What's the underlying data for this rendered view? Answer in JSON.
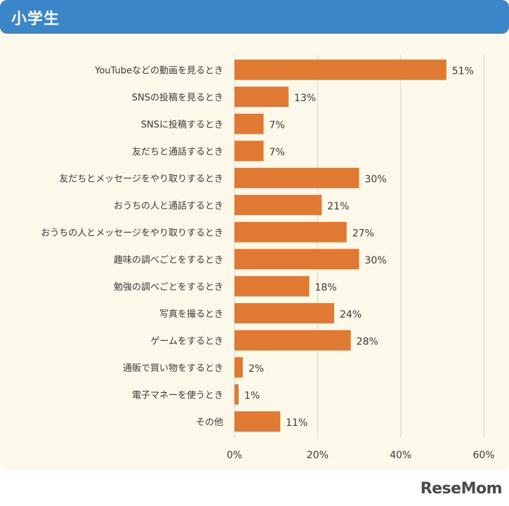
{
  "header": {
    "title": "小学生"
  },
  "logo": {
    "text": "ReseMom"
  },
  "chart_data": {
    "type": "bar",
    "orientation": "horizontal",
    "categories": [
      "YouTubeなどの動画を見るとき",
      "SNSの投稿を見るとき",
      "SNSに投稿するとき",
      "友だちと通話するとき",
      "友だちとメッセージをやり取りするとき",
      "おうちの人と通話するとき",
      "おうちの人とメッセージをやり取りするとき",
      "趣味の調べごとをするとき",
      "勉強の調べごとをするとき",
      "写真を撮るとき",
      "ゲームをするとき",
      "通販で買い物をするとき",
      "電子マネーを使うとき",
      "その他"
    ],
    "values": [
      51,
      13,
      7,
      7,
      30,
      21,
      27,
      30,
      18,
      24,
      28,
      2,
      1,
      11
    ],
    "value_labels": [
      "51%",
      "13%",
      "7%",
      "7%",
      "30%",
      "21%",
      "27%",
      "30%",
      "18%",
      "24%",
      "28%",
      "2%",
      "1%",
      "11%"
    ],
    "xlim": [
      0,
      60
    ],
    "xticks": [
      0,
      20,
      40,
      60
    ],
    "xtick_labels": [
      "0%",
      "20%",
      "40%",
      "60%"
    ],
    "grid": true,
    "bar_color": "#e07a33",
    "grid_color": "#d9d6c8",
    "text_color": "#3a3a3a"
  }
}
